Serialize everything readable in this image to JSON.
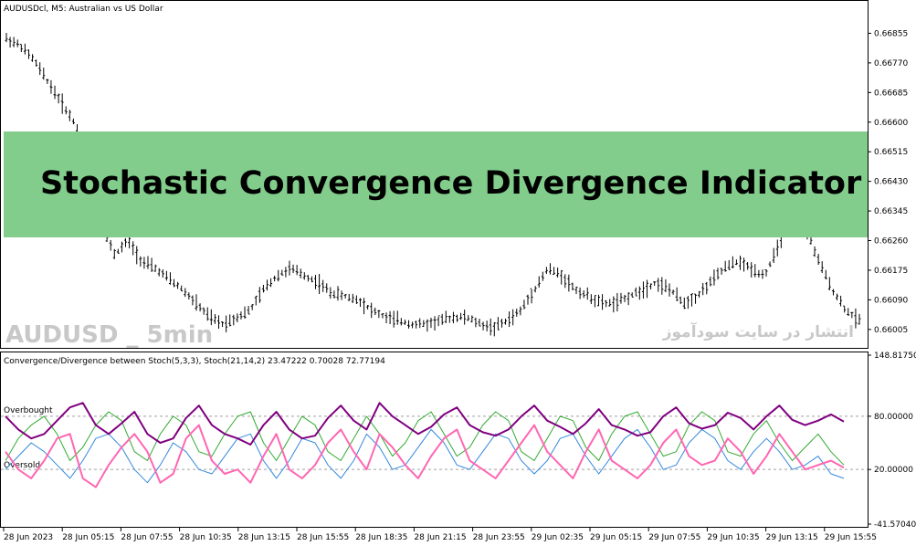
{
  "window": {
    "title": "AUDUSDcl, M5:  Australian vs US Dollar",
    "indicator_label": "Convergence/Divergence between Stoch(5,3,3), Stoch(21,14,2) 23.47222 0.70028 72.77194"
  },
  "banner": {
    "text": "Stochastic Convergence Divergence Indicator",
    "color": "#82cc8c"
  },
  "watermarks": {
    "left": "AUDUSD _ 5min",
    "right": "انتشار در سایت سودآموز"
  },
  "levels": {
    "overbought_label": "Overbought",
    "oversold_label": "Oversold"
  },
  "colors": {
    "purple": "#800080",
    "pink": "#ff66b2",
    "green": "#33aa33",
    "blue": "#3388dd",
    "grid": "#a0a0a0"
  },
  "chart_data": [
    {
      "type": "bar",
      "title": "AUDUSDcl, M5:  Australian vs US Dollar",
      "yticks": [
        "0.66855",
        "0.66770",
        "0.66685",
        "0.66600",
        "0.66515",
        "0.66430",
        "0.66345",
        "0.66260",
        "0.66175",
        "0.66090",
        "0.66005"
      ],
      "ylim": [
        0.6596,
        0.6694
      ],
      "close_approx": [
        0.6684,
        0.6682,
        0.6678,
        0.6672,
        0.6666,
        0.666,
        0.6648,
        0.663,
        0.6622,
        0.6626,
        0.662,
        0.6618,
        0.6615,
        0.6612,
        0.6608,
        0.6604,
        0.6602,
        0.6604,
        0.6606,
        0.6612,
        0.6616,
        0.6618,
        0.6616,
        0.6614,
        0.6611,
        0.661,
        0.6609,
        0.6606,
        0.6604,
        0.6603,
        0.6602,
        0.6602,
        0.6603,
        0.6604,
        0.6604,
        0.6602,
        0.6601,
        0.6603,
        0.6606,
        0.6612,
        0.6618,
        0.6616,
        0.6612,
        0.661,
        0.6608,
        0.6608,
        0.661,
        0.6612,
        0.6614,
        0.6612,
        0.6608,
        0.661,
        0.6614,
        0.6618,
        0.662,
        0.6618,
        0.6616,
        0.6624,
        0.6634,
        0.663,
        0.662,
        0.6612,
        0.6606,
        0.6603
      ]
    },
    {
      "type": "line",
      "title": "Convergence/Divergence between Stoch(5,3,3), Stoch(21,14,2) 23.47222 0.70028 72.77194",
      "yticks": [
        "148.81750",
        "80.00000",
        "20.00000",
        "-41.57040"
      ],
      "ylim": [
        -41.5704,
        148.8175
      ],
      "levels": [
        80,
        20
      ],
      "series": [
        {
          "values": [
            80,
            65,
            55,
            60,
            75,
            90,
            95,
            70,
            60,
            72,
            85,
            60,
            50,
            55,
            78,
            92,
            70,
            60,
            55,
            48,
            70,
            85,
            65,
            55,
            58,
            78,
            92,
            75,
            65,
            95,
            80,
            70,
            60,
            68,
            82,
            90,
            70,
            62,
            58,
            65,
            80,
            92,
            75,
            68,
            60,
            72,
            88,
            70,
            65,
            58,
            62,
            80,
            90,
            72,
            66,
            70,
            84,
            78,
            65,
            80,
            92,
            76,
            70,
            75,
            82,
            74
          ]
        },
        {
          "values": [
            40,
            20,
            10,
            30,
            55,
            60,
            10,
            0,
            25,
            45,
            60,
            40,
            5,
            15,
            55,
            70,
            30,
            15,
            20,
            5,
            35,
            60,
            20,
            10,
            25,
            50,
            65,
            40,
            20,
            60,
            45,
            25,
            10,
            35,
            55,
            65,
            30,
            20,
            10,
            30,
            50,
            70,
            40,
            25,
            10,
            40,
            65,
            30,
            20,
            10,
            25,
            50,
            65,
            35,
            25,
            30,
            55,
            40,
            15,
            35,
            60,
            40,
            20,
            25,
            30,
            22
          ]
        },
        {
          "values": [
            30,
            55,
            70,
            80,
            60,
            30,
            45,
            70,
            85,
            75,
            40,
            30,
            60,
            80,
            70,
            40,
            35,
            60,
            80,
            85,
            50,
            30,
            55,
            80,
            70,
            40,
            30,
            55,
            80,
            60,
            35,
            50,
            75,
            85,
            60,
            35,
            45,
            70,
            85,
            75,
            40,
            30,
            55,
            80,
            75,
            45,
            30,
            60,
            80,
            85,
            60,
            35,
            40,
            70,
            85,
            75,
            40,
            35,
            60,
            75,
            50,
            30,
            45,
            60,
            40,
            25
          ]
        },
        {
          "values": [
            20,
            35,
            50,
            40,
            25,
            10,
            30,
            55,
            60,
            45,
            20,
            5,
            25,
            50,
            40,
            20,
            15,
            35,
            55,
            60,
            30,
            10,
            30,
            55,
            50,
            25,
            10,
            30,
            60,
            45,
            20,
            25,
            45,
            65,
            50,
            25,
            20,
            40,
            60,
            55,
            30,
            15,
            30,
            55,
            60,
            35,
            15,
            35,
            55,
            65,
            45,
            20,
            25,
            50,
            65,
            55,
            30,
            20,
            40,
            55,
            40,
            20,
            25,
            35,
            15,
            10
          ]
        }
      ]
    }
  ],
  "x_axis": {
    "labels": [
      "28 Jun 2023",
      "28 Jun 05:15",
      "28 Jun 07:55",
      "28 Jun 10:35",
      "28 Jun 13:15",
      "28 Jun 15:55",
      "28 Jun 18:35",
      "28 Jun 21:15",
      "28 Jun 23:55",
      "29 Jun 02:35",
      "29 Jun 05:15",
      "29 Jun 07:55",
      "29 Jun 10:35",
      "29 Jun 13:15",
      "29 Jun 15:55"
    ]
  }
}
